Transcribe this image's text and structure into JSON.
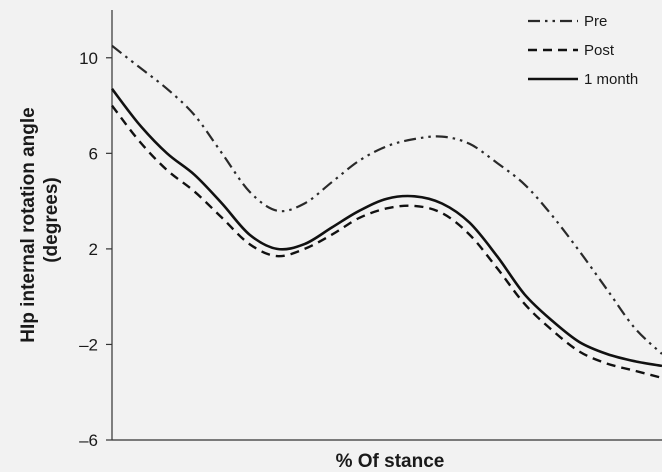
{
  "chart_data": {
    "type": "line",
    "title": "",
    "xlabel": "% Of stance",
    "ylabel_line1": "HIp internal  rotation  angle",
    "ylabel_line2": "(degrees)",
    "ylim": [
      -6,
      12
    ],
    "yticks": [
      10,
      6,
      2,
      -2,
      -6
    ],
    "xlim": [
      0,
      100
    ],
    "grid": false,
    "legend_position": "top-right",
    "x": [
      0,
      5,
      10,
      15,
      20,
      25,
      30,
      35,
      40,
      45,
      50,
      55,
      60,
      65,
      70,
      75,
      80,
      85,
      90,
      95,
      100
    ],
    "series": [
      {
        "name": "Pre",
        "dash": "dash-dot-dot",
        "values": [
          10.5,
          9.6,
          8.7,
          7.6,
          6.0,
          4.4,
          3.6,
          3.9,
          4.8,
          5.7,
          6.3,
          6.6,
          6.7,
          6.4,
          5.6,
          4.7,
          3.4,
          1.9,
          0.3,
          -1.3,
          -2.4
        ]
      },
      {
        "name": "Post",
        "dash": "dashed",
        "values": [
          8.0,
          6.5,
          5.3,
          4.4,
          3.3,
          2.2,
          1.7,
          2.0,
          2.6,
          3.3,
          3.7,
          3.8,
          3.5,
          2.6,
          1.2,
          -0.3,
          -1.4,
          -2.3,
          -2.8,
          -3.1,
          -3.4
        ]
      },
      {
        "name": "1 month",
        "dash": "solid",
        "values": [
          8.7,
          7.2,
          6.0,
          5.1,
          3.9,
          2.6,
          2.0,
          2.2,
          2.9,
          3.6,
          4.1,
          4.2,
          3.9,
          3.1,
          1.7,
          0.1,
          -1.0,
          -1.9,
          -2.4,
          -2.7,
          -2.9
        ]
      }
    ]
  }
}
